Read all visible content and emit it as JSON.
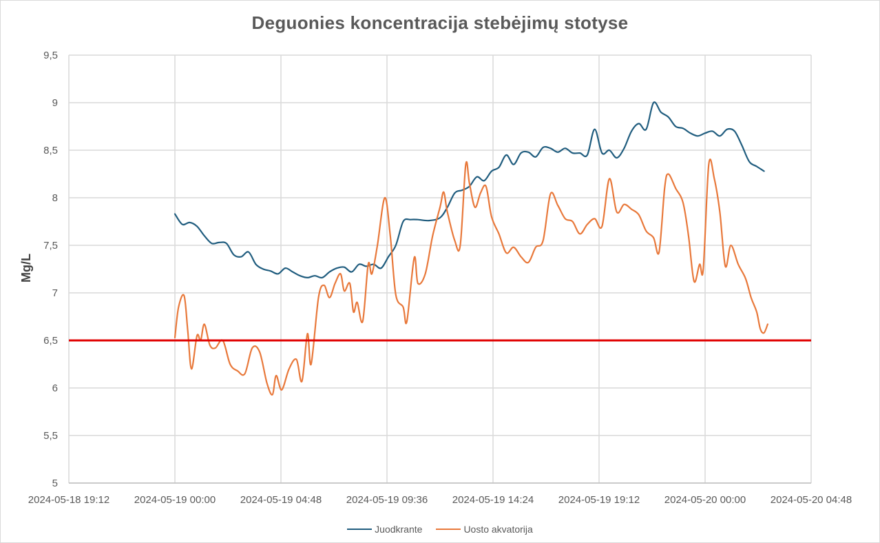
{
  "chart_data": {
    "type": "line",
    "title": "Deguonies koncentracija  stebėjimų stotyse",
    "xlabel": "",
    "ylabel": "Mg/L",
    "ylim": [
      5,
      9.5
    ],
    "y_ticks": [
      "5",
      "5,5",
      "6",
      "6,5",
      "7",
      "7,5",
      "8",
      "8,5",
      "9",
      "9,5"
    ],
    "x_range": [
      "2024-05-18 19:12",
      "2024-05-20 04:48"
    ],
    "x_ticks": [
      "2024-05-18 19:12",
      "2024-05-19 00:00",
      "2024-05-19 04:48",
      "2024-05-19 09:36",
      "2024-05-19 14:24",
      "2024-05-19 19:12",
      "2024-05-20 00:00",
      "2024-05-20 04:48"
    ],
    "grid": true,
    "legend_position": "bottom",
    "threshold": {
      "value": 6.5,
      "color": "#e00000"
    },
    "series": [
      {
        "name": "Juodkrante",
        "color": "#1f5c7e",
        "points": [
          [
            "2024-05-19 00:00",
            7.83
          ],
          [
            "2024-05-19 00:20",
            7.72
          ],
          [
            "2024-05-19 00:40",
            7.74
          ],
          [
            "2024-05-19 01:00",
            7.7
          ],
          [
            "2024-05-19 01:20",
            7.6
          ],
          [
            "2024-05-19 01:40",
            7.52
          ],
          [
            "2024-05-19 02:00",
            7.53
          ],
          [
            "2024-05-19 02:20",
            7.52
          ],
          [
            "2024-05-19 02:40",
            7.4
          ],
          [
            "2024-05-19 03:00",
            7.38
          ],
          [
            "2024-05-19 03:20",
            7.43
          ],
          [
            "2024-05-19 03:40",
            7.3
          ],
          [
            "2024-05-19 04:00",
            7.25
          ],
          [
            "2024-05-19 04:20",
            7.23
          ],
          [
            "2024-05-19 04:40",
            7.2
          ],
          [
            "2024-05-19 05:00",
            7.26
          ],
          [
            "2024-05-19 05:20",
            7.22
          ],
          [
            "2024-05-19 05:40",
            7.18
          ],
          [
            "2024-05-19 06:00",
            7.16
          ],
          [
            "2024-05-19 06:20",
            7.18
          ],
          [
            "2024-05-19 06:40",
            7.16
          ],
          [
            "2024-05-19 07:00",
            7.22
          ],
          [
            "2024-05-19 07:20",
            7.26
          ],
          [
            "2024-05-19 07:40",
            7.27
          ],
          [
            "2024-05-19 08:00",
            7.22
          ],
          [
            "2024-05-19 08:20",
            7.3
          ],
          [
            "2024-05-19 08:40",
            7.28
          ],
          [
            "2024-05-19 09:00",
            7.3
          ],
          [
            "2024-05-19 09:20",
            7.26
          ],
          [
            "2024-05-19 09:40",
            7.38
          ],
          [
            "2024-05-19 10:00",
            7.5
          ],
          [
            "2024-05-19 10:20",
            7.75
          ],
          [
            "2024-05-19 10:40",
            7.77
          ],
          [
            "2024-05-19 11:00",
            7.77
          ],
          [
            "2024-05-19 11:30",
            7.76
          ],
          [
            "2024-05-19 12:00",
            7.79
          ],
          [
            "2024-05-19 12:20",
            7.9
          ],
          [
            "2024-05-19 12:40",
            8.05
          ],
          [
            "2024-05-19 13:00",
            8.08
          ],
          [
            "2024-05-19 13:20",
            8.12
          ],
          [
            "2024-05-19 13:40",
            8.22
          ],
          [
            "2024-05-19 14:00",
            8.18
          ],
          [
            "2024-05-19 14:20",
            8.28
          ],
          [
            "2024-05-19 14:40",
            8.32
          ],
          [
            "2024-05-19 15:00",
            8.45
          ],
          [
            "2024-05-19 15:20",
            8.35
          ],
          [
            "2024-05-19 15:40",
            8.47
          ],
          [
            "2024-05-19 16:00",
            8.48
          ],
          [
            "2024-05-19 16:20",
            8.43
          ],
          [
            "2024-05-19 16:40",
            8.53
          ],
          [
            "2024-05-19 17:00",
            8.52
          ],
          [
            "2024-05-19 17:20",
            8.48
          ],
          [
            "2024-05-19 17:40",
            8.52
          ],
          [
            "2024-05-19 18:00",
            8.47
          ],
          [
            "2024-05-19 18:20",
            8.47
          ],
          [
            "2024-05-19 18:40",
            8.45
          ],
          [
            "2024-05-19 19:00",
            8.72
          ],
          [
            "2024-05-19 19:20",
            8.47
          ],
          [
            "2024-05-19 19:40",
            8.5
          ],
          [
            "2024-05-19 20:00",
            8.42
          ],
          [
            "2024-05-19 20:20",
            8.52
          ],
          [
            "2024-05-19 20:40",
            8.7
          ],
          [
            "2024-05-19 21:00",
            8.78
          ],
          [
            "2024-05-19 21:20",
            8.72
          ],
          [
            "2024-05-19 21:40",
            9.0
          ],
          [
            "2024-05-19 22:00",
            8.9
          ],
          [
            "2024-05-19 22:20",
            8.85
          ],
          [
            "2024-05-19 22:40",
            8.75
          ],
          [
            "2024-05-19 23:00",
            8.73
          ],
          [
            "2024-05-19 23:20",
            8.68
          ],
          [
            "2024-05-19 23:40",
            8.65
          ],
          [
            "2024-05-20 00:00",
            8.68
          ],
          [
            "2024-05-20 00:20",
            8.7
          ],
          [
            "2024-05-20 00:40",
            8.65
          ],
          [
            "2024-05-20 01:00",
            8.72
          ],
          [
            "2024-05-20 01:20",
            8.7
          ],
          [
            "2024-05-20 01:40",
            8.55
          ],
          [
            "2024-05-20 02:00",
            8.38
          ],
          [
            "2024-05-20 02:20",
            8.33
          ],
          [
            "2024-05-20 02:40",
            8.28
          ]
        ]
      },
      {
        "name": "Uosto akvatorija",
        "color": "#e8783a",
        "points": [
          [
            "2024-05-19 00:00",
            6.53
          ],
          [
            "2024-05-19 00:10",
            6.85
          ],
          [
            "2024-05-19 00:25",
            6.97
          ],
          [
            "2024-05-19 00:35",
            6.6
          ],
          [
            "2024-05-19 00:45",
            6.2
          ],
          [
            "2024-05-19 01:00",
            6.55
          ],
          [
            "2024-05-19 01:10",
            6.5
          ],
          [
            "2024-05-19 01:20",
            6.67
          ],
          [
            "2024-05-19 01:35",
            6.45
          ],
          [
            "2024-05-19 01:50",
            6.42
          ],
          [
            "2024-05-19 02:10",
            6.5
          ],
          [
            "2024-05-19 02:30",
            6.25
          ],
          [
            "2024-05-19 02:50",
            6.18
          ],
          [
            "2024-05-19 03:10",
            6.15
          ],
          [
            "2024-05-19 03:30",
            6.42
          ],
          [
            "2024-05-19 03:50",
            6.38
          ],
          [
            "2024-05-19 04:10",
            6.05
          ],
          [
            "2024-05-19 04:25",
            5.93
          ],
          [
            "2024-05-19 04:35",
            6.13
          ],
          [
            "2024-05-19 04:50",
            5.98
          ],
          [
            "2024-05-19 05:10",
            6.2
          ],
          [
            "2024-05-19 05:30",
            6.3
          ],
          [
            "2024-05-19 05:45",
            6.07
          ],
          [
            "2024-05-19 06:00",
            6.57
          ],
          [
            "2024-05-19 06:10",
            6.25
          ],
          [
            "2024-05-19 06:30",
            6.95
          ],
          [
            "2024-05-19 06:45",
            7.08
          ],
          [
            "2024-05-19 07:00",
            6.95
          ],
          [
            "2024-05-19 07:15",
            7.1
          ],
          [
            "2024-05-19 07:30",
            7.2
          ],
          [
            "2024-05-19 07:40",
            7.02
          ],
          [
            "2024-05-19 07:55",
            7.1
          ],
          [
            "2024-05-19 08:05",
            6.8
          ],
          [
            "2024-05-19 08:15",
            6.9
          ],
          [
            "2024-05-19 08:30",
            6.7
          ],
          [
            "2024-05-19 08:45",
            7.3
          ],
          [
            "2024-05-19 08:55",
            7.2
          ],
          [
            "2024-05-19 09:10",
            7.5
          ],
          [
            "2024-05-19 09:30",
            8.0
          ],
          [
            "2024-05-19 09:45",
            7.6
          ],
          [
            "2024-05-19 10:00",
            6.98
          ],
          [
            "2024-05-19 10:20",
            6.85
          ],
          [
            "2024-05-19 10:30",
            6.7
          ],
          [
            "2024-05-19 10:50",
            7.37
          ],
          [
            "2024-05-19 11:00",
            7.1
          ],
          [
            "2024-05-19 11:20",
            7.2
          ],
          [
            "2024-05-19 11:40",
            7.6
          ],
          [
            "2024-05-19 12:00",
            7.9
          ],
          [
            "2024-05-19 12:10",
            8.06
          ],
          [
            "2024-05-19 12:20",
            7.85
          ],
          [
            "2024-05-19 12:40",
            7.55
          ],
          [
            "2024-05-19 12:55",
            7.5
          ],
          [
            "2024-05-19 13:10",
            8.35
          ],
          [
            "2024-05-19 13:20",
            8.15
          ],
          [
            "2024-05-19 13:35",
            7.9
          ],
          [
            "2024-05-19 13:50",
            8.05
          ],
          [
            "2024-05-19 14:05",
            8.12
          ],
          [
            "2024-05-19 14:20",
            7.8
          ],
          [
            "2024-05-19 14:40",
            7.62
          ],
          [
            "2024-05-19 15:00",
            7.42
          ],
          [
            "2024-05-19 15:20",
            7.48
          ],
          [
            "2024-05-19 15:40",
            7.38
          ],
          [
            "2024-05-19 16:00",
            7.32
          ],
          [
            "2024-05-19 16:20",
            7.48
          ],
          [
            "2024-05-19 16:40",
            7.55
          ],
          [
            "2024-05-19 17:00",
            8.04
          ],
          [
            "2024-05-19 17:20",
            7.92
          ],
          [
            "2024-05-19 17:40",
            7.78
          ],
          [
            "2024-05-19 18:00",
            7.75
          ],
          [
            "2024-05-19 18:20",
            7.62
          ],
          [
            "2024-05-19 18:40",
            7.72
          ],
          [
            "2024-05-19 19:00",
            7.78
          ],
          [
            "2024-05-19 19:20",
            7.7
          ],
          [
            "2024-05-19 19:40",
            8.2
          ],
          [
            "2024-05-19 20:00",
            7.85
          ],
          [
            "2024-05-19 20:20",
            7.93
          ],
          [
            "2024-05-19 20:40",
            7.88
          ],
          [
            "2024-05-19 21:00",
            7.82
          ],
          [
            "2024-05-19 21:20",
            7.65
          ],
          [
            "2024-05-19 21:40",
            7.58
          ],
          [
            "2024-05-19 21:55",
            7.43
          ],
          [
            "2024-05-19 22:10",
            8.1
          ],
          [
            "2024-05-19 22:20",
            8.25
          ],
          [
            "2024-05-19 22:40",
            8.1
          ],
          [
            "2024-05-19 23:00",
            7.95
          ],
          [
            "2024-05-19 23:15",
            7.6
          ],
          [
            "2024-05-19 23:30",
            7.12
          ],
          [
            "2024-05-19 23:45",
            7.3
          ],
          [
            "2024-05-19 23:55",
            7.25
          ],
          [
            "2024-05-20 00:10",
            8.35
          ],
          [
            "2024-05-20 00:25",
            8.2
          ],
          [
            "2024-05-20 00:40",
            7.85
          ],
          [
            "2024-05-20 00:55",
            7.28
          ],
          [
            "2024-05-20 01:10",
            7.5
          ],
          [
            "2024-05-20 01:30",
            7.3
          ],
          [
            "2024-05-20 01:50",
            7.15
          ],
          [
            "2024-05-20 02:05",
            6.95
          ],
          [
            "2024-05-20 02:20",
            6.8
          ],
          [
            "2024-05-20 02:30",
            6.62
          ],
          [
            "2024-05-20 02:40",
            6.58
          ],
          [
            "2024-05-20 02:50",
            6.67
          ]
        ]
      }
    ]
  }
}
